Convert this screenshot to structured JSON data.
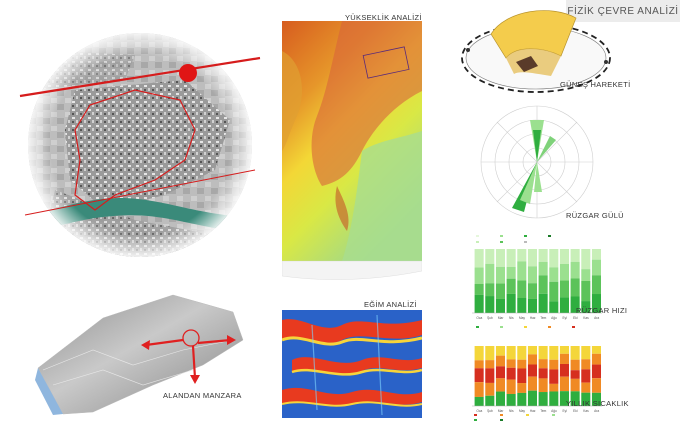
{
  "header": {
    "title": "FİZİK ÇEVRE ANALİZİ"
  },
  "labels": {
    "elevation": "YÜKSEKLİK ANALİZİ",
    "slope": "EĞİM ANALİZİ",
    "sun": "GÜNEŞ HAREKETİ",
    "wind_rose": "RÜZGAR GÜLÜ",
    "wind_speed": "RÜZGAR HIZI",
    "temperature": "YILLIK SICAKLIK",
    "view": "ALANDAN MANZARA"
  },
  "colors": {
    "route_red": "#d61c1c",
    "river": "#3a8a7a",
    "wind_green": "#2fae3f",
    "wind_light": "#9be08f",
    "temp_red": "#d62f1f",
    "temp_orange": "#f08a24",
    "temp_yellow": "#f4d63a"
  },
  "wind_speed_chart": {
    "months": [
      "Oca",
      "Şub",
      "Mar",
      "Nis",
      "May",
      "Haz",
      "Tem",
      "Ağu",
      "Eyl",
      "Eki",
      "Kas",
      "Ara"
    ]
  },
  "temperature_chart": {
    "months": [
      "Oca",
      "Şub",
      "Mar",
      "Nis",
      "May",
      "Haz",
      "Tem",
      "Ağu",
      "Eyl",
      "Eki",
      "Kas",
      "Ara"
    ]
  }
}
